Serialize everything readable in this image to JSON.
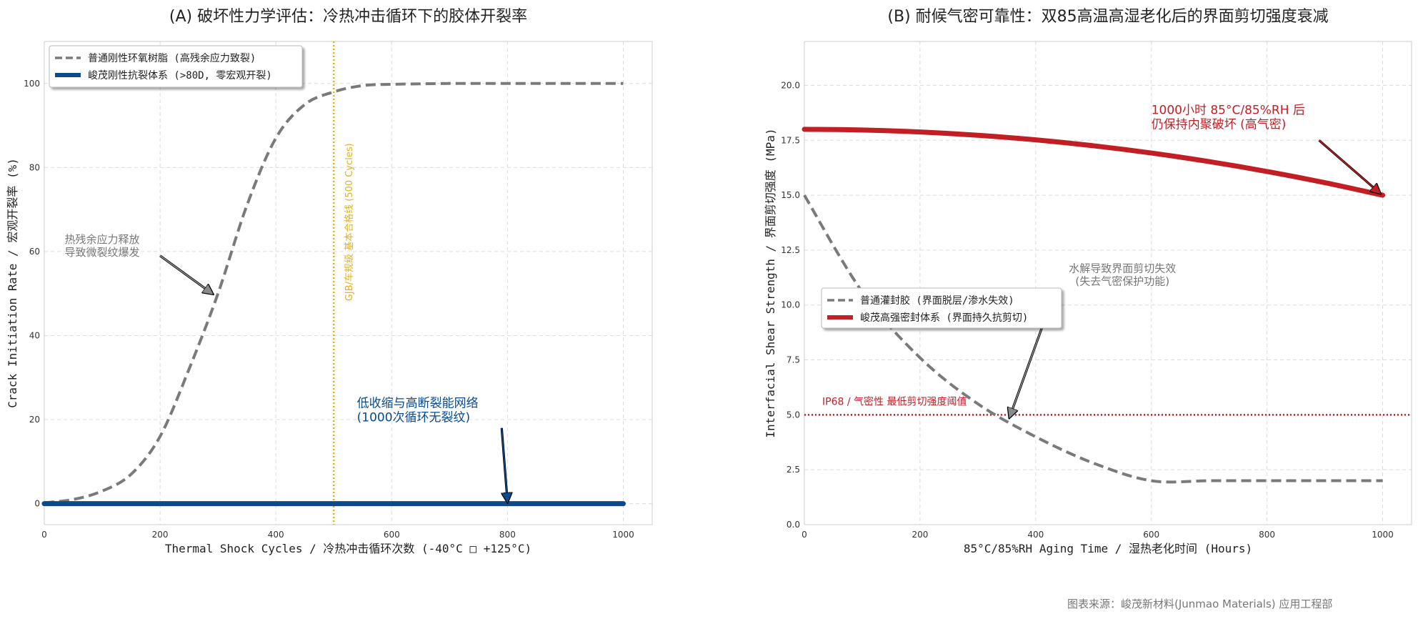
{
  "footer": "图表来源：峻茂新材料(Junmao Materials) 应用工程部",
  "colors": {
    "grey": "#7a7a7a",
    "blue": "#0b4a8f",
    "red": "#c21f24",
    "gold": "#e2b01f",
    "annot_grey": "#777777"
  },
  "chart_data": [
    {
      "type": "line",
      "title": "(A) 破坏性力学评估：冷热冲击循环下的胶体开裂率",
      "xlabel": "Thermal Shock Cycles / 冷热冲击循环次数 (-40°C □ +125°C)",
      "ylabel": "Crack Initiation Rate / 宏观开裂率 (%)",
      "xlim": [
        0,
        1050
      ],
      "ylim": [
        -5,
        110
      ],
      "xticks": [
        0,
        200,
        400,
        600,
        800,
        1000
      ],
      "yticks": [
        0,
        20,
        40,
        60,
        80,
        100
      ],
      "grid": true,
      "legend_position": "top-left",
      "series": [
        {
          "name": "普通刚性环氧树脂 (高残余应力致裂)",
          "style": "dashed",
          "color": "#7a7a7a",
          "x": [
            0,
            50,
            100,
            150,
            200,
            250,
            300,
            350,
            400,
            450,
            500,
            550,
            600,
            700,
            800,
            900,
            1000
          ],
          "y": [
            0.2,
            1,
            3,
            7,
            16,
            32,
            50,
            71,
            87,
            95,
            98,
            99.5,
            99.8,
            100,
            100,
            100,
            100
          ]
        },
        {
          "name": "峻茂刚性抗裂体系 (>80D, 零宏观开裂)",
          "style": "solid",
          "color": "#0b4a8f",
          "x": [
            0,
            1000
          ],
          "y": [
            0,
            0
          ]
        }
      ],
      "vline": {
        "x": 500,
        "label": "GJB/车规级 基本合格线 (500 Cycles)",
        "color": "#e2b01f"
      },
      "annotations": [
        {
          "text": [
            "热残余应力释放",
            "导致微裂纹爆发"
          ],
          "color": "#777777",
          "text_at": [
            100,
            62
          ],
          "arrow_from": [
            200,
            59
          ],
          "arrow_to": [
            290,
            50
          ]
        },
        {
          "text": [
            "低收缩与高断裂能网络",
            "(1000次循环无裂纹)"
          ],
          "color": "#0b4a8f",
          "text_at": [
            540,
            23
          ],
          "arrow_from": [
            790,
            18
          ],
          "arrow_to": [
            800,
            0.5
          ]
        }
      ]
    },
    {
      "type": "line",
      "title": "(B) 耐候气密可靠性：双85高温高湿老化后的界面剪切强度衰减",
      "xlabel": "85°C/85%RH Aging Time / 湿热老化时间 (Hours)",
      "ylabel": "Interfacial Shear Strength / 界面剪切强度 (MPa)",
      "xlim": [
        0,
        1050
      ],
      "ylim": [
        0,
        22
      ],
      "xticks": [
        0,
        200,
        400,
        600,
        800,
        1000
      ],
      "yticks": [
        0.0,
        2.5,
        5.0,
        7.5,
        10.0,
        12.5,
        15.0,
        17.5,
        20.0
      ],
      "ytick_labels": [
        "0.0",
        "2.5",
        "5.0",
        "7.5",
        "10.0",
        "12.5",
        "15.0",
        "17.5",
        "20.0"
      ],
      "grid": true,
      "legend_position": "center-left",
      "series": [
        {
          "name": "普通灌封胶 (界面脱层/渗水失效)",
          "style": "dashed",
          "color": "#7a7a7a",
          "x": [
            0,
            100,
            200,
            300,
            400,
            500,
            600,
            700,
            800,
            900,
            1000
          ],
          "y": [
            15.0,
            10.6,
            7.6,
            5.5,
            4.0,
            2.8,
            2.0,
            2.0,
            2.0,
            2.0,
            2.0
          ]
        },
        {
          "name": "峻茂高强密封体系 (界面持久抗剪切)",
          "style": "solid",
          "color": "#c21f24",
          "x": [
            0,
            100,
            200,
            300,
            400,
            500,
            600,
            700,
            800,
            900,
            1000
          ],
          "y": [
            18.0,
            17.97,
            17.88,
            17.73,
            17.52,
            17.25,
            16.92,
            16.53,
            16.08,
            15.57,
            15.0
          ]
        }
      ],
      "hline": {
        "y": 5.0,
        "label": "IP68 / 气密性 最低剪切强度阈值",
        "color": "#c21f24"
      },
      "annotations": [
        {
          "text": [
            "1000小时 85°C/85%RH 后",
            "仍保持内聚破坏 (高气密)"
          ],
          "color": "#c21f24",
          "text_at": [
            600,
            18.7
          ],
          "arrow_from": [
            890,
            17.5
          ],
          "arrow_to": [
            995,
            15.1
          ]
        },
        {
          "text": [
            "水解导致界面剪切失效",
            "(失去气密保护功能)"
          ],
          "color": "#777777",
          "text_at": [
            550,
            11.5
          ],
          "arrow_from": [
            425,
            10
          ],
          "arrow_to": [
            355,
            4.9
          ]
        }
      ]
    }
  ]
}
